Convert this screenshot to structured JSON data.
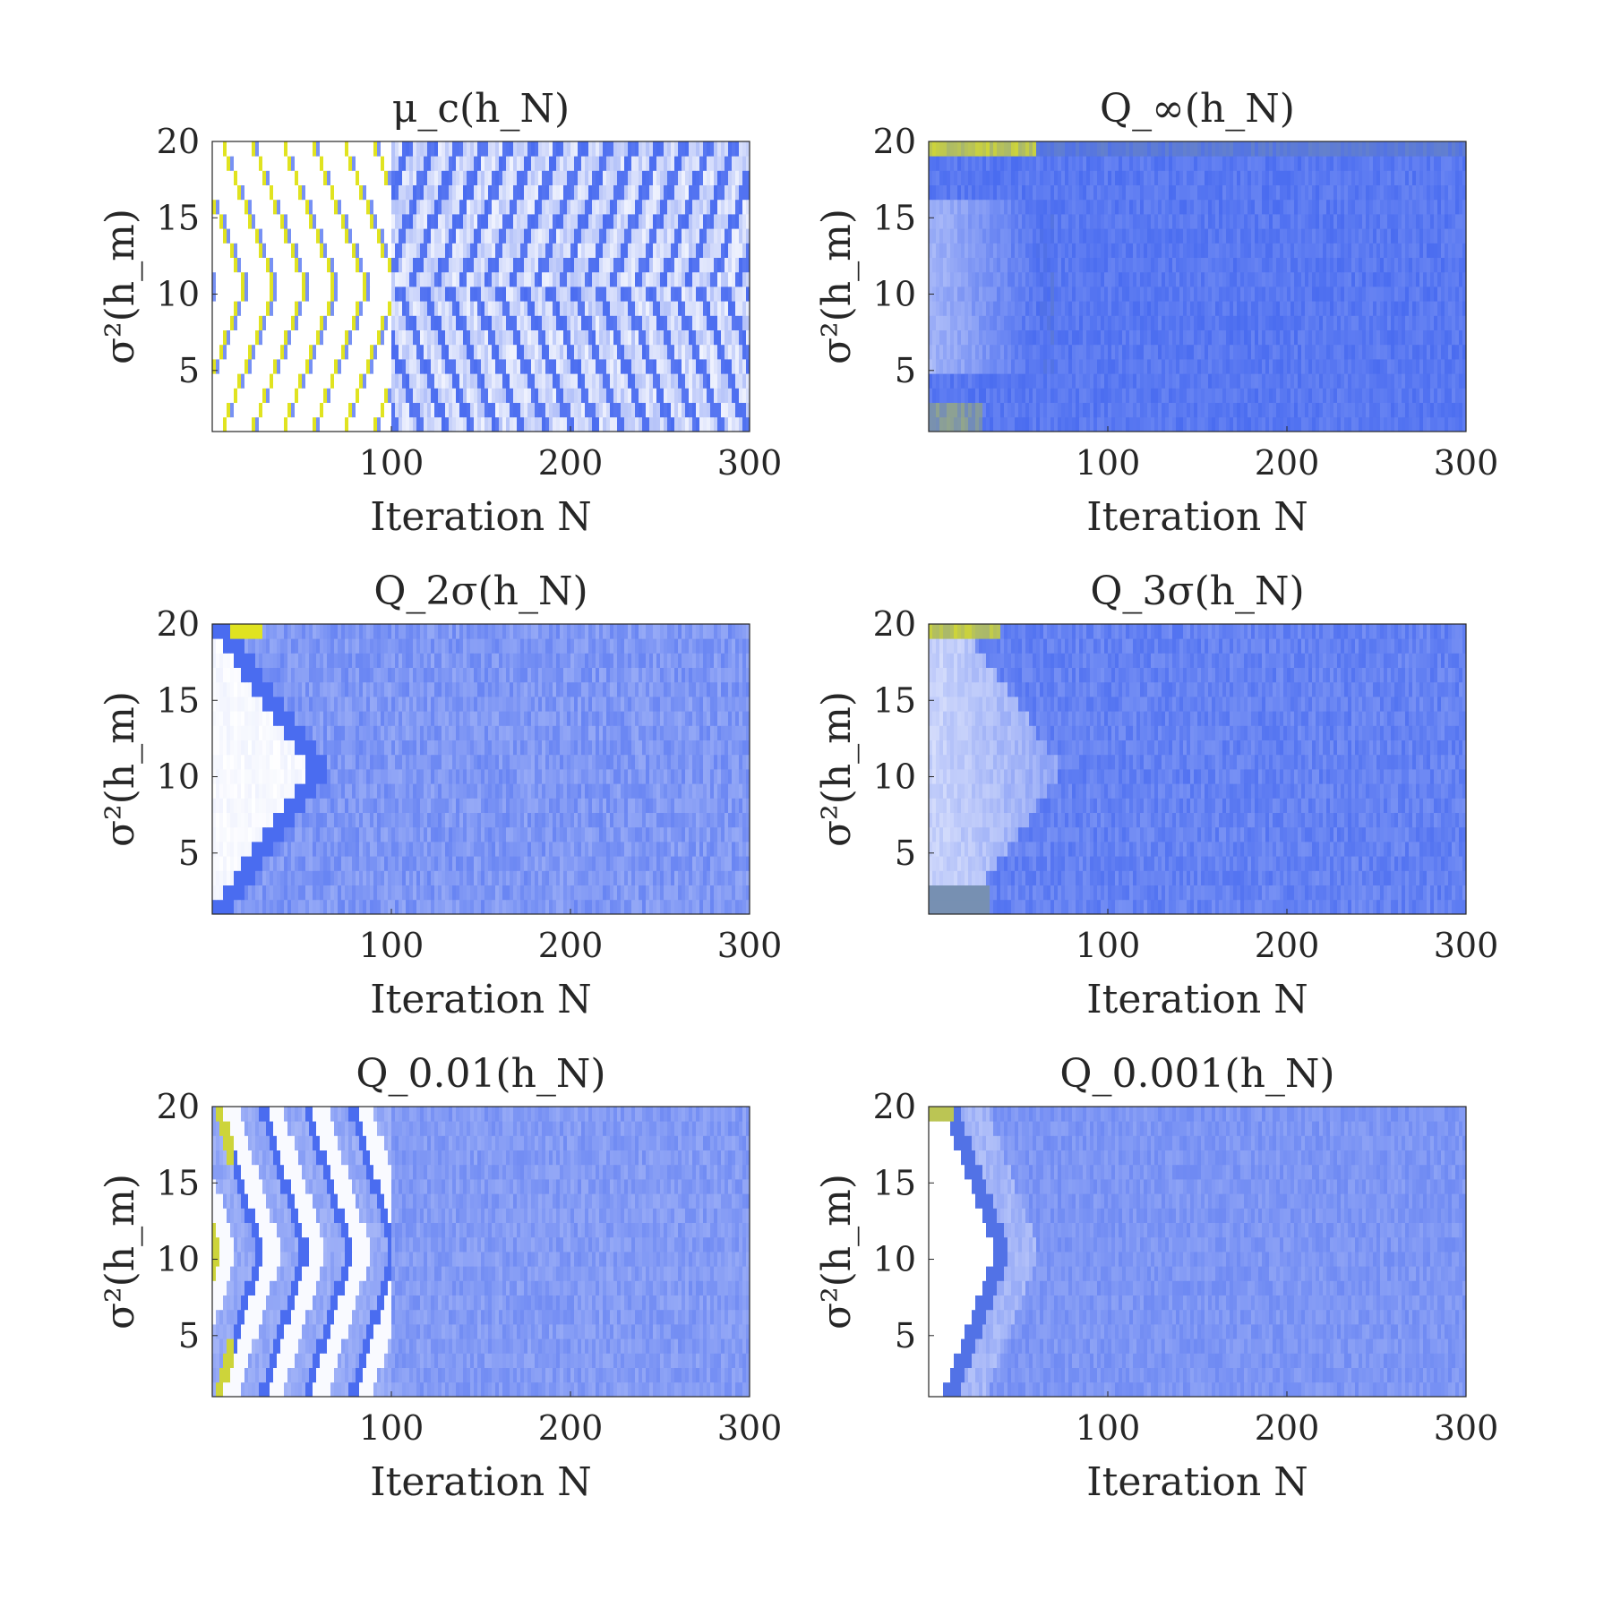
{
  "chart_data": [
    {
      "type": "heatmap",
      "pattern": "chevron",
      "title": "μ_c(h_N)",
      "xlabel": "Iteration N",
      "ylabel": "σ²(h_m)",
      "xlim": [
        0,
        300
      ],
      "ylim": [
        1,
        20
      ],
      "x_ticks": [
        "100",
        "200",
        "300"
      ],
      "y_ticks": [
        "5",
        "10",
        "15",
        "20"
      ],
      "colormap": [
        "#ffffff",
        "#4a6cf0",
        "#e0e320"
      ]
    },
    {
      "type": "heatmap",
      "pattern": "uniform",
      "title": "Q_∞(h_N)",
      "xlabel": "Iteration N",
      "ylabel": "σ²(h_m)",
      "xlim": [
        0,
        300
      ],
      "ylim": [
        1,
        20
      ],
      "x_ticks": [
        "100",
        "200",
        "300"
      ],
      "y_ticks": [
        "5",
        "10",
        "15",
        "20"
      ],
      "colormap": [
        "#ffffff",
        "#4a6cf0",
        "#e0e320"
      ]
    },
    {
      "type": "heatmap",
      "pattern": "bright-wedge",
      "title": "Q_2σ(h_N)",
      "xlabel": "Iteration N",
      "ylabel": "σ²(h_m)",
      "xlim": [
        0,
        300
      ],
      "ylim": [
        1,
        20
      ],
      "x_ticks": [
        "100",
        "200",
        "300"
      ],
      "y_ticks": [
        "5",
        "10",
        "15",
        "20"
      ],
      "colormap": [
        "#ffffff",
        "#4a6cf0",
        "#e0e320"
      ]
    },
    {
      "type": "heatmap",
      "pattern": "soft-wedge",
      "title": "Q_3σ(h_N)",
      "xlabel": "Iteration N",
      "ylabel": "σ²(h_m)",
      "xlim": [
        0,
        300
      ],
      "ylim": [
        1,
        20
      ],
      "x_ticks": [
        "100",
        "200",
        "300"
      ],
      "y_ticks": [
        "5",
        "10",
        "15",
        "20"
      ],
      "colormap": [
        "#ffffff",
        "#4a6cf0",
        "#e0e320"
      ]
    },
    {
      "type": "heatmap",
      "pattern": "multi-band",
      "title": "Q_0.01(h_N)",
      "xlabel": "Iteration N",
      "ylabel": "σ²(h_m)",
      "xlim": [
        0,
        300
      ],
      "ylim": [
        1,
        20
      ],
      "x_ticks": [
        "100",
        "200",
        "300"
      ],
      "y_ticks": [
        "5",
        "10",
        "15",
        "20"
      ],
      "colormap": [
        "#ffffff",
        "#4a6cf0",
        "#e0e320"
      ]
    },
    {
      "type": "heatmap",
      "pattern": "single-band",
      "title": "Q_0.001(h_N)",
      "xlabel": "Iteration N",
      "ylabel": "σ²(h_m)",
      "xlim": [
        0,
        300
      ],
      "ylim": [
        1,
        20
      ],
      "x_ticks": [
        "100",
        "200",
        "300"
      ],
      "y_ticks": [
        "5",
        "10",
        "15",
        "20"
      ],
      "colormap": [
        "#ffffff",
        "#4a6cf0",
        "#e0e320"
      ]
    }
  ]
}
